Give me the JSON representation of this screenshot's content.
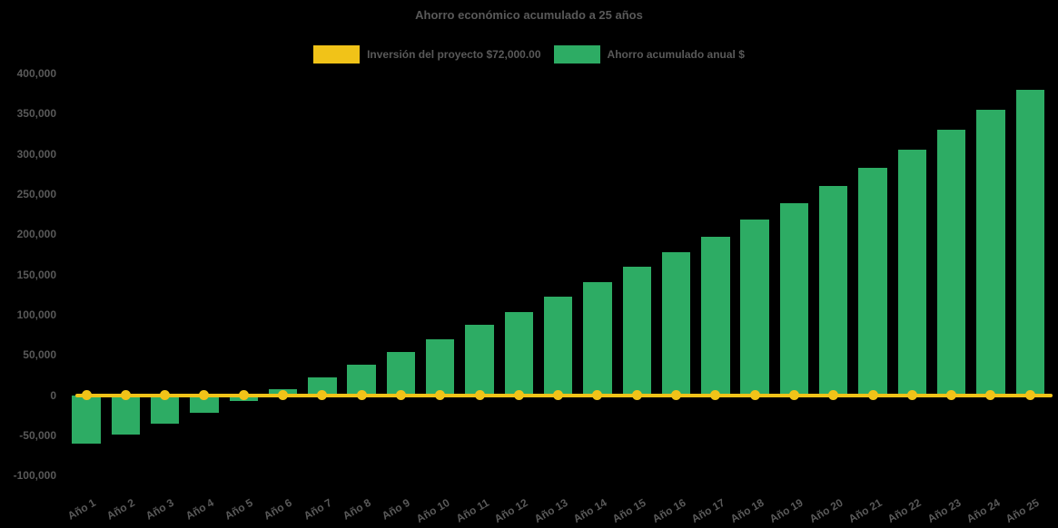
{
  "chart_data": {
    "type": "bar",
    "title": "Ahorro económico acumulado a 25 años",
    "background": "#000000",
    "text_color": "#595959",
    "grid": false,
    "legend_position": "top",
    "x_label_rotation": -30,
    "ylim": [
      -100000,
      400000
    ],
    "y_tick_step": 50000,
    "y_tick_labels": [
      "400,000",
      "350,000",
      "300,000",
      "250,000",
      "200,000",
      "150,000",
      "100,000",
      "50,000",
      "0",
      "-50,000",
      "-100,000"
    ],
    "categories": [
      "Año 1",
      "Año 2",
      "Año 3",
      "Año 4",
      "Año 5",
      "Año 6",
      "Año 7",
      "Año 8",
      "Año 9",
      "Año 10",
      "Año 11",
      "Año 12",
      "Año 13",
      "Año 14",
      "Año 15",
      "Año 16",
      "Año 17",
      "Año 18",
      "Año 19",
      "Año 20",
      "Año 21",
      "Año 22",
      "Año 23",
      "Año 24",
      "Año 25"
    ],
    "series": [
      {
        "name": "Inversión del proyecto $72,000.00",
        "type": "line",
        "color": "#F1C318",
        "marker": "circle",
        "values": [
          0,
          0,
          0,
          0,
          0,
          0,
          0,
          0,
          0,
          0,
          0,
          0,
          0,
          0,
          0,
          0,
          0,
          0,
          0,
          0,
          0,
          0,
          0,
          0,
          0
        ]
      },
      {
        "name": "Ahorro acumulado anual $",
        "type": "bar",
        "color": "#2DAC64",
        "values": [
          -60000,
          -49000,
          -36000,
          -22000,
          -7000,
          7000,
          22000,
          38000,
          54000,
          69000,
          87000,
          103000,
          122000,
          140000,
          160000,
          178000,
          197000,
          218000,
          239000,
          260000,
          283000,
          305000,
          330000,
          355000,
          380000
        ]
      }
    ]
  }
}
